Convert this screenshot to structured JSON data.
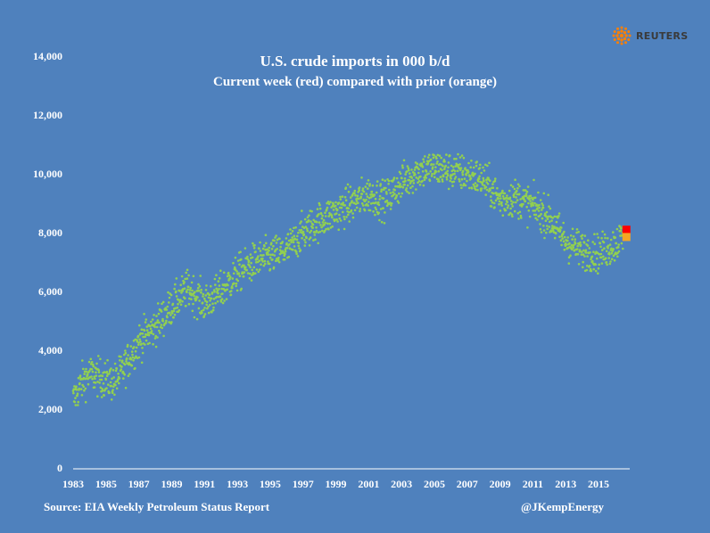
{
  "chart_data": {
    "type": "scatter",
    "title": "U.S. crude imports in 000 b/d",
    "subtitle": "Current week (red) compared with prior (orange)",
    "xlabel": "",
    "ylabel": "",
    "xlim": [
      1983,
      2016.9
    ],
    "ylim": [
      0,
      14000
    ],
    "grid": false,
    "x_ticks": [
      "1983",
      "1985",
      "1987",
      "1989",
      "1991",
      "1993",
      "1995",
      "1997",
      "1999",
      "2001",
      "2003",
      "2005",
      "2007",
      "2009",
      "2011",
      "2013",
      "2015"
    ],
    "y_ticks": [
      "0",
      "2,000",
      "4,000",
      "6,000",
      "8,000",
      "10,000",
      "12,000",
      "14,000"
    ],
    "series": [
      {
        "color": "#92d050",
        "marker": "dot",
        "trend": [
          [
            1983.0,
            2300
          ],
          [
            1983.5,
            2900
          ],
          [
            1984.0,
            3200
          ],
          [
            1985.0,
            3000
          ],
          [
            1985.5,
            2900
          ],
          [
            1986.0,
            3300
          ],
          [
            1987.0,
            4300
          ],
          [
            1988.0,
            4800
          ],
          [
            1989.0,
            5500
          ],
          [
            1990.0,
            6100
          ],
          [
            1991.0,
            5600
          ],
          [
            1992.0,
            6000
          ],
          [
            1993.0,
            6600
          ],
          [
            1994.0,
            7000
          ],
          [
            1995.0,
            7200
          ],
          [
            1996.0,
            7400
          ],
          [
            1997.0,
            8000
          ],
          [
            1998.0,
            8400
          ],
          [
            1999.0,
            8700
          ],
          [
            2000.0,
            9000
          ],
          [
            2001.0,
            9300
          ],
          [
            2002.0,
            9100
          ],
          [
            2003.0,
            9700
          ],
          [
            2004.0,
            10100
          ],
          [
            2005.0,
            10200
          ],
          [
            2006.0,
            10100
          ],
          [
            2007.0,
            10000
          ],
          [
            2008.0,
            9800
          ],
          [
            2009.0,
            9100
          ],
          [
            2010.0,
            9200
          ],
          [
            2011.0,
            8900
          ],
          [
            2012.0,
            8500
          ],
          [
            2013.0,
            7700
          ],
          [
            2014.0,
            7400
          ],
          [
            2015.0,
            7300
          ],
          [
            2016.0,
            7600
          ],
          [
            2016.5,
            7900
          ]
        ],
        "spread": 600,
        "points_per_year": 52
      },
      {
        "name": "Current week",
        "color": "#ff0000",
        "marker": "square",
        "x": [
          2016.7
        ],
        "y": [
          8100
        ]
      },
      {
        "name": "Prior week",
        "color": "#f5a623",
        "marker": "square",
        "x": [
          2016.7
        ],
        "y": [
          7850
        ]
      }
    ]
  },
  "footer": {
    "source": "Source: EIA Weekly Petroleum Status Report",
    "handle": "@JKempEnergy"
  },
  "brand": {
    "name": "REUTERS",
    "logo_color": "#ff8000"
  }
}
